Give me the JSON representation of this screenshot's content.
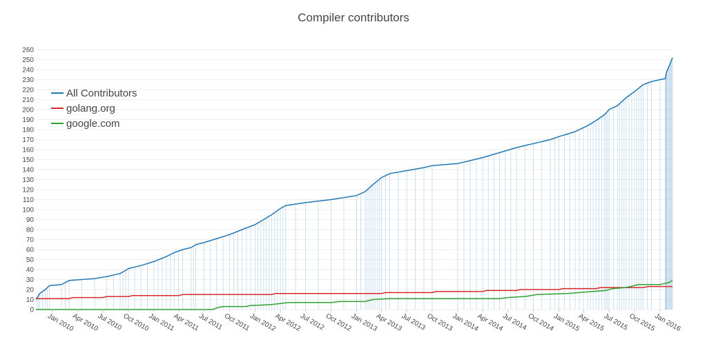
{
  "chart_data": {
    "type": "line",
    "title": "Compiler contributors",
    "xlabel": "",
    "ylabel": "",
    "ylim": [
      0,
      260
    ],
    "yticks": [
      0,
      10,
      20,
      30,
      40,
      50,
      60,
      70,
      80,
      90,
      100,
      110,
      120,
      130,
      140,
      150,
      160,
      170,
      180,
      190,
      200,
      210,
      220,
      230,
      240,
      250,
      260
    ],
    "xlim": [
      "2009-11-01",
      "2016-02-15"
    ],
    "xticks": [
      "Jan 2010",
      "Apr 2010",
      "Jul 2010",
      "Oct 2010",
      "Jan 2011",
      "Apr 2011",
      "Jul 2011",
      "Oct 2011",
      "Jan 2012",
      "Apr 2012",
      "Jul 2012",
      "Oct 2012",
      "Jan 2013",
      "Apr 2013",
      "Jul 2013",
      "Oct 2013",
      "Jan 2014",
      "Apr 2014",
      "Jul 2014",
      "Oct 2014",
      "Jan 2015",
      "Apr 2015",
      "Jul 2015",
      "Oct 2015",
      "Jan 2016"
    ],
    "legend_position": "top-left",
    "grid": true,
    "series": [
      {
        "name": "All Contributors",
        "color": "#1f77b4",
        "points": [
          [
            "2009-11-01",
            10
          ],
          [
            "2009-11-15",
            16
          ],
          [
            "2009-12-05",
            20
          ],
          [
            "2009-12-20",
            24
          ],
          [
            "2010-02-01",
            25
          ],
          [
            "2010-03-01",
            29
          ],
          [
            "2010-04-15",
            30
          ],
          [
            "2010-06-01",
            31
          ],
          [
            "2010-07-15",
            33
          ],
          [
            "2010-09-01",
            36
          ],
          [
            "2010-10-01",
            41
          ],
          [
            "2010-11-15",
            44
          ],
          [
            "2011-01-01",
            48
          ],
          [
            "2011-02-15",
            53
          ],
          [
            "2011-03-15",
            57
          ],
          [
            "2011-04-15",
            60
          ],
          [
            "2011-05-15",
            62
          ],
          [
            "2011-06-01",
            65
          ],
          [
            "2011-07-01",
            67
          ],
          [
            "2011-08-15",
            71
          ],
          [
            "2011-10-01",
            75
          ],
          [
            "2011-11-15",
            80
          ],
          [
            "2012-01-01",
            85
          ],
          [
            "2012-02-01",
            90
          ],
          [
            "2012-03-01",
            95
          ],
          [
            "2012-04-01",
            101
          ],
          [
            "2012-04-20",
            104
          ],
          [
            "2012-07-01",
            107
          ],
          [
            "2012-10-01",
            110
          ],
          [
            "2013-01-01",
            114
          ],
          [
            "2013-02-01",
            118
          ],
          [
            "2013-03-01",
            125
          ],
          [
            "2013-04-01",
            132
          ],
          [
            "2013-05-01",
            136
          ],
          [
            "2013-07-01",
            139
          ],
          [
            "2013-09-01",
            142
          ],
          [
            "2013-10-01",
            144
          ],
          [
            "2014-01-01",
            146
          ],
          [
            "2014-02-15",
            149
          ],
          [
            "2014-04-01",
            152
          ],
          [
            "2014-06-01",
            157
          ],
          [
            "2014-08-01",
            162
          ],
          [
            "2014-10-01",
            166
          ],
          [
            "2014-12-01",
            170
          ],
          [
            "2015-01-01",
            173
          ],
          [
            "2015-03-01",
            178
          ],
          [
            "2015-04-15",
            184
          ],
          [
            "2015-05-15",
            189
          ],
          [
            "2015-06-15",
            195
          ],
          [
            "2015-07-01",
            200
          ],
          [
            "2015-08-01",
            204
          ],
          [
            "2015-09-01",
            212
          ],
          [
            "2015-10-01",
            218
          ],
          [
            "2015-11-01",
            225
          ],
          [
            "2015-12-01",
            228
          ],
          [
            "2016-01-01",
            230
          ],
          [
            "2016-01-20",
            231
          ],
          [
            "2016-01-25",
            238
          ],
          [
            "2016-02-05",
            245
          ],
          [
            "2016-02-15",
            252
          ]
        ]
      },
      {
        "name": "golang.org",
        "color": "#d62728",
        "points": [
          [
            "2009-11-01",
            11
          ],
          [
            "2010-03-01",
            11
          ],
          [
            "2010-03-15",
            12
          ],
          [
            "2010-07-01",
            12
          ],
          [
            "2010-07-15",
            13
          ],
          [
            "2010-10-01",
            13
          ],
          [
            "2010-10-15",
            14
          ],
          [
            "2011-04-01",
            14
          ],
          [
            "2011-04-15",
            15
          ],
          [
            "2012-03-01",
            15
          ],
          [
            "2012-03-15",
            16
          ],
          [
            "2013-04-01",
            16
          ],
          [
            "2013-04-15",
            17
          ],
          [
            "2013-10-01",
            17
          ],
          [
            "2013-10-15",
            18
          ],
          [
            "2014-04-01",
            18
          ],
          [
            "2014-04-15",
            19
          ],
          [
            "2014-08-01",
            19
          ],
          [
            "2014-08-15",
            20
          ],
          [
            "2015-01-01",
            20
          ],
          [
            "2015-01-15",
            21
          ],
          [
            "2015-05-15",
            21
          ],
          [
            "2015-06-01",
            22
          ],
          [
            "2015-11-01",
            22
          ],
          [
            "2015-11-20",
            23
          ],
          [
            "2016-02-15",
            23
          ]
        ]
      },
      {
        "name": "google.com",
        "color": "#2ca02c",
        "points": [
          [
            "2009-11-01",
            0
          ],
          [
            "2011-08-01",
            0
          ],
          [
            "2011-08-20",
            2
          ],
          [
            "2011-09-10",
            3
          ],
          [
            "2011-12-01",
            3
          ],
          [
            "2011-12-15",
            4
          ],
          [
            "2012-03-01",
            5
          ],
          [
            "2012-04-01",
            6
          ],
          [
            "2012-05-01",
            7
          ],
          [
            "2012-10-01",
            7
          ],
          [
            "2012-11-01",
            8
          ],
          [
            "2013-02-01",
            8
          ],
          [
            "2013-03-01",
            10
          ],
          [
            "2013-05-01",
            11
          ],
          [
            "2014-06-01",
            11
          ],
          [
            "2014-07-01",
            12
          ],
          [
            "2014-09-01",
            13
          ],
          [
            "2014-10-15",
            15
          ],
          [
            "2015-02-01",
            16
          ],
          [
            "2015-03-15",
            17
          ],
          [
            "2015-05-01",
            18
          ],
          [
            "2015-06-20",
            19
          ],
          [
            "2015-07-15",
            21
          ],
          [
            "2015-09-01",
            22
          ],
          [
            "2015-10-15",
            25
          ],
          [
            "2016-01-01",
            25
          ],
          [
            "2016-02-01",
            27
          ],
          [
            "2016-02-15",
            29
          ]
        ]
      }
    ]
  }
}
